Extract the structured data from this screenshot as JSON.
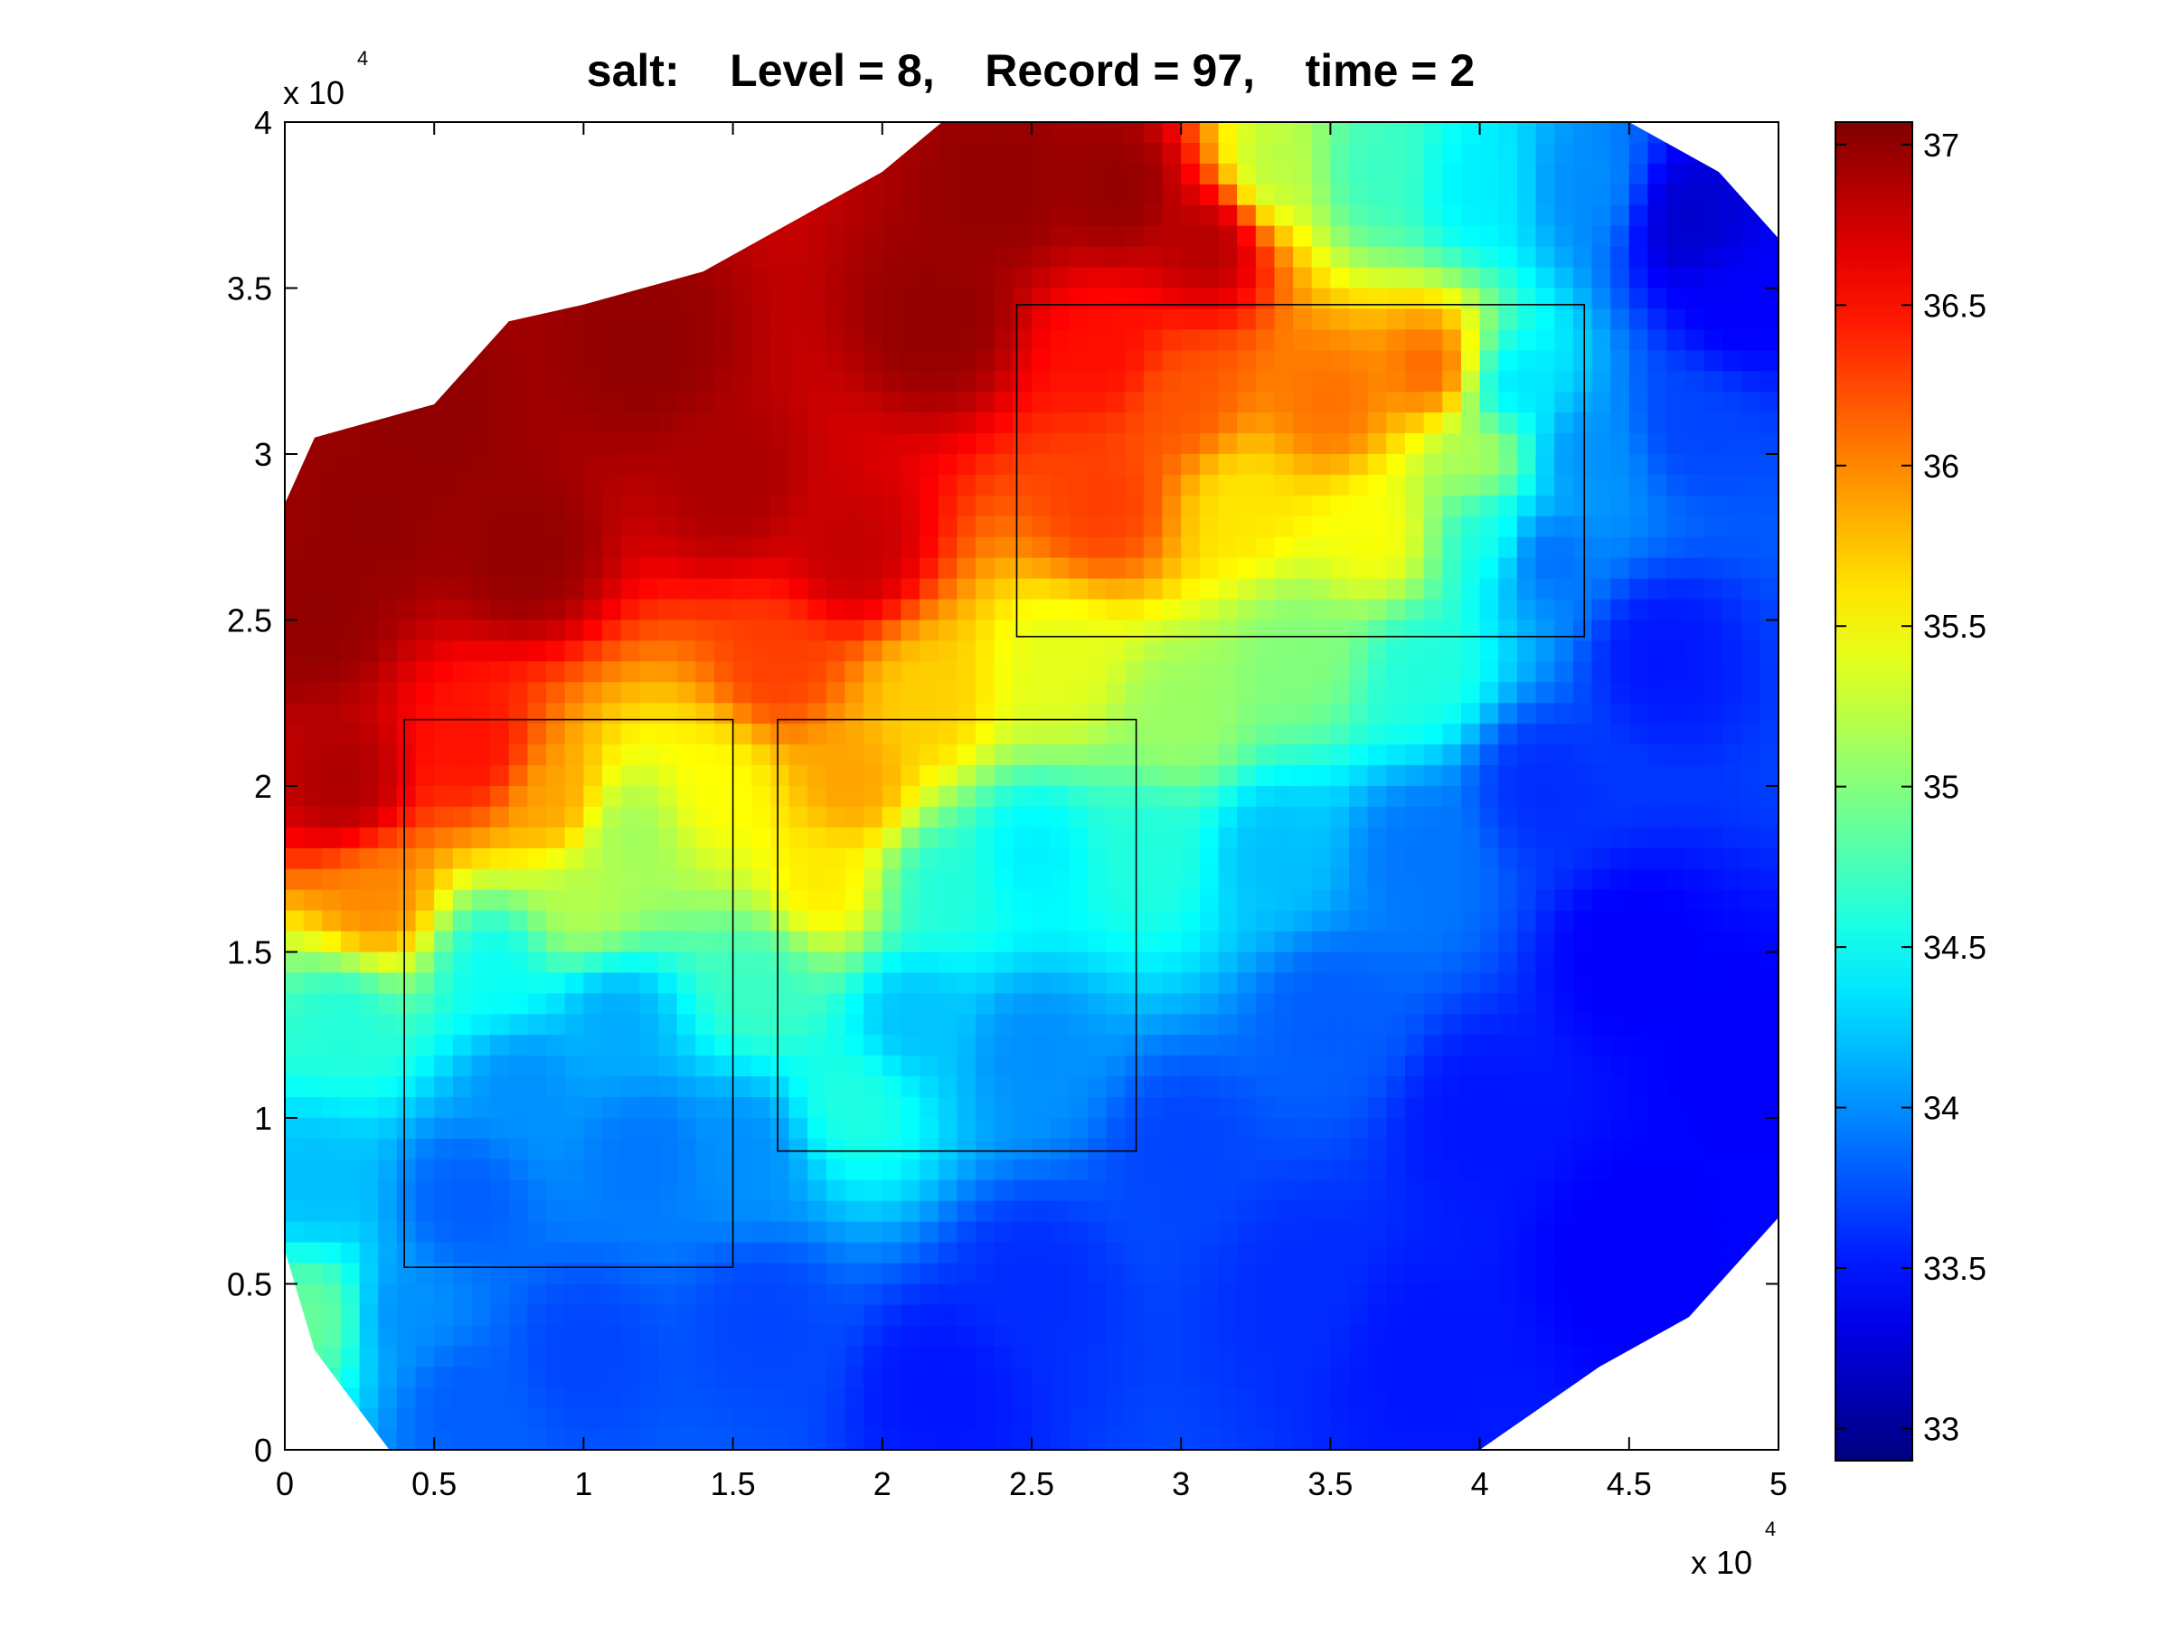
{
  "chart_data": {
    "type": "heatmap",
    "title": "salt:    Level = 8,    Record = 97,    time = 2",
    "xlim": [
      0,
      50000
    ],
    "ylim": [
      0,
      40000
    ],
    "x_ticks": [
      0,
      5000,
      10000,
      15000,
      20000,
      25000,
      30000,
      35000,
      40000,
      45000,
      50000
    ],
    "x_tick_labels": [
      "0",
      "0.5",
      "1",
      "1.5",
      "2",
      "2.5",
      "3",
      "3.5",
      "4",
      "4.5",
      "5"
    ],
    "y_ticks": [
      0,
      5000,
      10000,
      15000,
      20000,
      25000,
      30000,
      35000,
      40000
    ],
    "y_tick_labels": [
      "0",
      "0.5",
      "1",
      "1.5",
      "2",
      "2.5",
      "3",
      "3.5",
      "4"
    ],
    "x_multiplier": {
      "base": "x 10",
      "exp": "4"
    },
    "y_multiplier": {
      "base": "x 10",
      "exp": "4"
    },
    "colorbar": {
      "colormap": "jet",
      "range": [
        32.9,
        37.07
      ],
      "ticks": [
        33,
        33.5,
        34,
        34.5,
        35,
        35.5,
        36,
        36.5,
        37
      ],
      "tick_labels": [
        "33",
        "33.5",
        "34",
        "34.5",
        "35",
        "35.5",
        "36",
        "36.5",
        "37"
      ]
    },
    "field": {
      "variable": "salt",
      "domain_outline": [
        [
          0,
          28500
        ],
        [
          1000,
          30500
        ],
        [
          5000,
          31500
        ],
        [
          7500,
          34000
        ],
        [
          10000,
          34500
        ],
        [
          14000,
          35500
        ],
        [
          17000,
          37000
        ],
        [
          20000,
          38500
        ],
        [
          22000,
          40000
        ],
        [
          45000,
          40000
        ],
        [
          48000,
          38500
        ],
        [
          50000,
          36500
        ],
        [
          50000,
          7000
        ],
        [
          47000,
          4000
        ],
        [
          44000,
          2500
        ],
        [
          40000,
          0
        ],
        [
          3500,
          0
        ],
        [
          1000,
          3000
        ],
        [
          0,
          6000
        ]
      ],
      "control_points": [
        [
          1000,
          25000,
          37.0
        ],
        [
          2000,
          20000,
          36.9
        ],
        [
          3000,
          16500,
          36.0
        ],
        [
          2000,
          13000,
          34.6
        ],
        [
          1000,
          8000,
          34.2
        ],
        [
          1000,
          4000,
          34.9
        ],
        [
          5000,
          31000,
          37.0
        ],
        [
          8000,
          27000,
          37.0
        ],
        [
          12000,
          33000,
          37.0
        ],
        [
          15000,
          29000,
          36.9
        ],
        [
          19000,
          27000,
          36.8
        ],
        [
          22000,
          34000,
          37.0
        ],
        [
          24000,
          38000,
          37.0
        ],
        [
          28000,
          38000,
          37.0
        ],
        [
          31000,
          36500,
          36.9
        ],
        [
          6500,
          21000,
          36.5
        ],
        [
          9000,
          19500,
          35.9
        ],
        [
          11500,
          18500,
          35.1
        ],
        [
          10000,
          16500,
          35.2
        ],
        [
          7000,
          14500,
          34.5
        ],
        [
          11000,
          13000,
          34.1
        ],
        [
          8000,
          11000,
          34.0
        ],
        [
          12000,
          9000,
          33.9
        ],
        [
          6000,
          7500,
          33.8
        ],
        [
          19000,
          20000,
          35.9
        ],
        [
          18000,
          17000,
          35.6
        ],
        [
          22000,
          17000,
          34.6
        ],
        [
          25000,
          18000,
          34.4
        ],
        [
          21000,
          13000,
          34.2
        ],
        [
          25000,
          12000,
          34.0
        ],
        [
          19000,
          10500,
          34.6
        ],
        [
          16500,
          23500,
          36.3
        ],
        [
          21500,
          22500,
          35.7
        ],
        [
          27500,
          33000,
          36.5
        ],
        [
          30000,
          31500,
          36.2
        ],
        [
          27500,
          28500,
          36.3
        ],
        [
          32000,
          28500,
          35.6
        ],
        [
          35000,
          31500,
          36.1
        ],
        [
          36500,
          27500,
          35.5
        ],
        [
          38500,
          32500,
          36.2
        ],
        [
          40000,
          30000,
          35.2
        ],
        [
          40500,
          27500,
          34.6
        ],
        [
          42000,
          27000,
          33.8
        ],
        [
          41000,
          32000,
          34.3
        ],
        [
          43500,
          30000,
          34.0
        ],
        [
          26000,
          23500,
          35.4
        ],
        [
          30000,
          22000,
          35.1
        ],
        [
          34000,
          24000,
          35.0
        ],
        [
          38000,
          23500,
          34.6
        ],
        [
          33000,
          38500,
          35.2
        ],
        [
          36500,
          38500,
          34.7
        ],
        [
          40000,
          38000,
          34.4
        ],
        [
          43500,
          38000,
          34.0
        ],
        [
          47000,
          37000,
          33.2
        ],
        [
          48500,
          34500,
          33.4
        ],
        [
          47000,
          31000,
          33.7
        ],
        [
          29000,
          18000,
          34.6
        ],
        [
          33000,
          18000,
          34.2
        ],
        [
          35000,
          13000,
          33.8
        ],
        [
          38000,
          18000,
          33.9
        ],
        [
          42000,
          20000,
          33.6
        ],
        [
          46000,
          24000,
          33.5
        ],
        [
          45000,
          15000,
          33.4
        ],
        [
          49000,
          12000,
          33.4
        ],
        [
          40000,
          10000,
          33.5
        ],
        [
          45000,
          6000,
          33.4
        ],
        [
          30000,
          9000,
          33.7
        ],
        [
          34000,
          5000,
          33.6
        ],
        [
          38000,
          3000,
          33.5
        ],
        [
          25000,
          5000,
          33.6
        ],
        [
          22000,
          2000,
          33.5
        ],
        [
          16000,
          4000,
          33.7
        ],
        [
          15500,
          9000,
          34.0
        ],
        [
          10000,
          3000,
          33.7
        ],
        [
          6000,
          1500,
          33.8
        ],
        [
          4000,
          4000,
          34.0
        ],
        [
          16000,
          14000,
          34.7
        ],
        [
          14500,
          20000,
          35.5
        ],
        [
          3000,
          28000,
          37.0
        ]
      ]
    },
    "boxes": [
      {
        "x": [
          4000,
          15000
        ],
        "y": [
          5500,
          22000
        ]
      },
      {
        "x": [
          16500,
          28500
        ],
        "y": [
          9000,
          22000
        ]
      },
      {
        "x": [
          24500,
          43500
        ],
        "y": [
          24500,
          34500
        ]
      }
    ]
  }
}
